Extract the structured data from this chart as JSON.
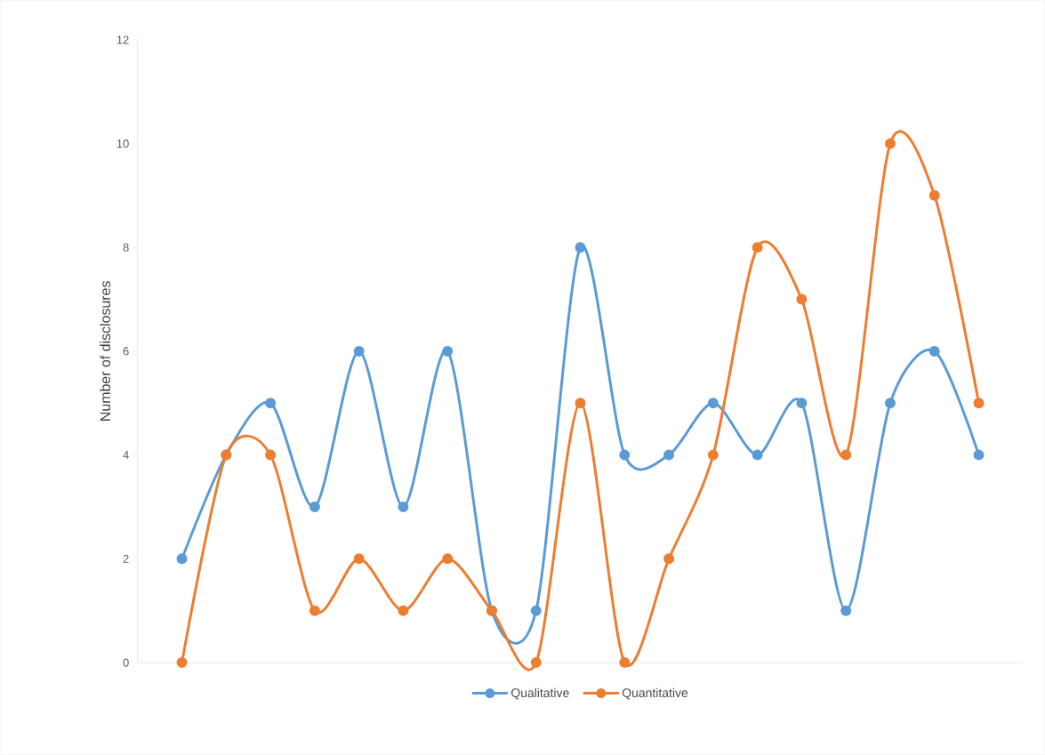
{
  "chart_data": {
    "type": "line",
    "ylabel": "Number of disclosures",
    "categories": [
      null,
      null,
      null,
      null,
      null,
      null,
      null,
      null,
      null,
      null,
      null,
      null,
      null,
      null,
      null,
      null,
      null,
      null,
      null
    ],
    "series": [
      {
        "name": "Qualitative",
        "color": "#5b9bd5",
        "values": [
          2,
          4,
          5,
          3,
          6,
          3,
          6,
          1,
          1,
          8,
          4,
          4,
          5,
          4,
          5,
          1,
          5,
          6,
          4
        ]
      },
      {
        "name": "Quantitative",
        "color": "#ed7d31",
        "values": [
          0,
          4,
          4,
          1,
          2,
          1,
          2,
          1,
          0,
          5,
          0,
          2,
          4,
          8,
          7,
          4,
          10,
          9,
          5
        ]
      }
    ],
    "ylim": [
      0,
      12
    ],
    "yticks": [
      0,
      2,
      4,
      6,
      8,
      10,
      12
    ],
    "grid": false,
    "legend": "bottom",
    "marker": "circle",
    "line_style": "solid"
  }
}
